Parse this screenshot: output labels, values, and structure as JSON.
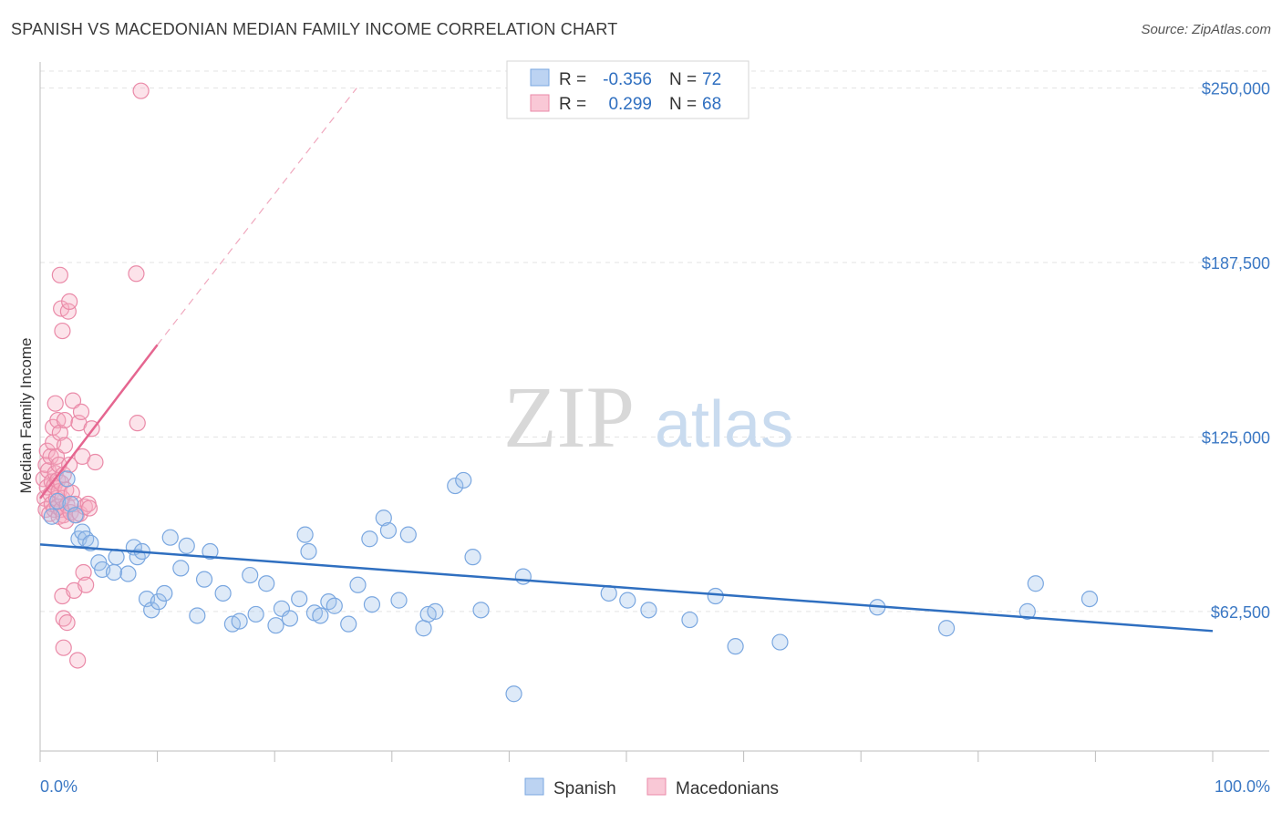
{
  "header": {
    "title": "SPANISH VS MACEDONIAN MEDIAN FAMILY INCOME CORRELATION CHART",
    "source": "Source: ZipAtlas.com"
  },
  "watermark": {
    "zip": "ZIP",
    "atlas": "atlas"
  },
  "legend": {
    "rows": [
      {
        "r_label": "R =",
        "r_value": "-0.356",
        "n_label": "N =",
        "n_value": "72",
        "color": "#a8c6ee"
      },
      {
        "r_label": "R =",
        "r_value": "0.299",
        "n_label": "N =",
        "n_value": "68",
        "color": "#f6b6c8"
      }
    ]
  },
  "bottom_legend": [
    {
      "label": "Spanish",
      "color": "#a8c6ee"
    },
    {
      "label": "Macedonians",
      "color": "#f6b6c8"
    }
  ],
  "colors": {
    "spanish_fill": "rgba(160,194,236,0.35)",
    "spanish_stroke": "#7aa7e0",
    "spanish_line": "#2f6fc0",
    "macedonian_fill": "rgba(246,176,196,0.35)",
    "macedonian_stroke": "#ea8aa8",
    "macedonian_line": "#e56690",
    "axis_text": "#3b78c4",
    "grid": "#e3e3e3"
  },
  "chart_data": {
    "type": "scatter",
    "title": "SPANISH VS MACEDONIAN MEDIAN FAMILY INCOME CORRELATION CHART",
    "xlabel": "",
    "ylabel": "Median Family Income",
    "xlim": [
      0,
      100
    ],
    "ylim": [
      5000,
      258000
    ],
    "x_tick_labels": [
      "0.0%",
      "100.0%"
    ],
    "y_ticks": [
      62500,
      125000,
      187500,
      250000
    ],
    "y_tick_labels": [
      "$62,500",
      "$125,000",
      "$187,500",
      "$250,000"
    ],
    "grid": true,
    "series": [
      {
        "name": "Spanish",
        "r": -0.356,
        "n": 72,
        "trend": {
          "x": [
            0,
            100
          ],
          "y": [
            86500,
            55500
          ],
          "dashed_extension": false
        },
        "points": [
          [
            1,
            96500
          ],
          [
            1.5,
            102000
          ],
          [
            2.3,
            110000
          ],
          [
            2.6,
            101000
          ],
          [
            3,
            97000
          ],
          [
            3.3,
            88500
          ],
          [
            3.6,
            91000
          ],
          [
            3.9,
            88500
          ],
          [
            4.3,
            87000
          ],
          [
            5,
            80000
          ],
          [
            5.3,
            77500
          ],
          [
            6.3,
            76500
          ],
          [
            6.5,
            82000
          ],
          [
            7.5,
            76000
          ],
          [
            8,
            85500
          ],
          [
            8.3,
            82000
          ],
          [
            8.7,
            84000
          ],
          [
            9.1,
            67000
          ],
          [
            9.5,
            63000
          ],
          [
            10.1,
            66000
          ],
          [
            10.6,
            69000
          ],
          [
            11.1,
            89000
          ],
          [
            12,
            78000
          ],
          [
            12.5,
            86000
          ],
          [
            13.4,
            61000
          ],
          [
            14,
            74000
          ],
          [
            14.5,
            84000
          ],
          [
            15.6,
            69000
          ],
          [
            16.4,
            58000
          ],
          [
            17,
            59000
          ],
          [
            17.9,
            75500
          ],
          [
            18.4,
            61500
          ],
          [
            19.3,
            72500
          ],
          [
            20.1,
            57500
          ],
          [
            20.6,
            63500
          ],
          [
            21.3,
            60000
          ],
          [
            22.1,
            67000
          ],
          [
            22.6,
            90000
          ],
          [
            22.9,
            84000
          ],
          [
            23.4,
            62000
          ],
          [
            23.9,
            61000
          ],
          [
            24.6,
            66000
          ],
          [
            25.1,
            64500
          ],
          [
            26.3,
            58000
          ],
          [
            27.1,
            72000
          ],
          [
            28.1,
            88500
          ],
          [
            28.3,
            65000
          ],
          [
            29.3,
            96000
          ],
          [
            29.7,
            91500
          ],
          [
            30.6,
            66500
          ],
          [
            31.4,
            90000
          ],
          [
            32.7,
            56500
          ],
          [
            33.1,
            61500
          ],
          [
            33.7,
            62500
          ],
          [
            35.4,
            107500
          ],
          [
            36.1,
            109500
          ],
          [
            36.9,
            82000
          ],
          [
            37.6,
            63000
          ],
          [
            40.4,
            33000
          ],
          [
            41.2,
            75000
          ],
          [
            48.5,
            69000
          ],
          [
            50.1,
            66500
          ],
          [
            51.9,
            63000
          ],
          [
            55.4,
            59500
          ],
          [
            57.6,
            68000
          ],
          [
            59.3,
            50000
          ],
          [
            63.1,
            51500
          ],
          [
            71.4,
            64000
          ],
          [
            77.3,
            56500
          ],
          [
            84.2,
            62500
          ],
          [
            84.9,
            72500
          ],
          [
            89.5,
            67000
          ]
        ]
      },
      {
        "name": "Macedonians",
        "r": 0.299,
        "n": 68,
        "trend": {
          "x": [
            0,
            10
          ],
          "y": [
            103000,
            158000
          ],
          "dashed_extension": true,
          "dashed_to": [
            27,
            250000
          ]
        },
        "points": [
          [
            0.3,
            110000
          ],
          [
            0.4,
            103000
          ],
          [
            0.5,
            99000
          ],
          [
            0.5,
            115000
          ],
          [
            0.6,
            107000
          ],
          [
            0.6,
            120000
          ],
          [
            0.7,
            113000
          ],
          [
            0.8,
            97500
          ],
          [
            0.9,
            104500
          ],
          [
            0.9,
            118000
          ],
          [
            1,
            101000
          ],
          [
            1,
            109000
          ],
          [
            1.1,
            123000
          ],
          [
            1.1,
            128500
          ],
          [
            1.2,
            99000
          ],
          [
            1.2,
            107500
          ],
          [
            1.3,
            112000
          ],
          [
            1.3,
            137000
          ],
          [
            1.4,
            103000
          ],
          [
            1.4,
            118000
          ],
          [
            1.5,
            100000
          ],
          [
            1.5,
            109500
          ],
          [
            1.5,
            131000
          ],
          [
            1.6,
            96500
          ],
          [
            1.6,
            105500
          ],
          [
            1.6,
            115000
          ],
          [
            1.7,
            126500
          ],
          [
            1.7,
            183000
          ],
          [
            1.8,
            99000
          ],
          [
            1.8,
            108500
          ],
          [
            1.8,
            171000
          ],
          [
            1.9,
            68000
          ],
          [
            1.9,
            103000
          ],
          [
            1.9,
            163000
          ],
          [
            2,
            60000
          ],
          [
            2,
            97000
          ],
          [
            2,
            49500
          ],
          [
            2,
            111500
          ],
          [
            2.1,
            131000
          ],
          [
            2.1,
            122000
          ],
          [
            2.2,
            95000
          ],
          [
            2.2,
            106000
          ],
          [
            2.3,
            58500
          ],
          [
            2.3,
            100500
          ],
          [
            2.4,
            170000
          ],
          [
            2.5,
            173500
          ],
          [
            2.5,
            115000
          ],
          [
            2.6,
            98000
          ],
          [
            2.7,
            105000
          ],
          [
            2.8,
            138000
          ],
          [
            2.9,
            70000
          ],
          [
            3,
            101000
          ],
          [
            3.1,
            97000
          ],
          [
            3.2,
            45000
          ],
          [
            3.3,
            130000
          ],
          [
            3.4,
            97500
          ],
          [
            3.5,
            134000
          ],
          [
            3.6,
            118000
          ],
          [
            3.7,
            76500
          ],
          [
            3.8,
            100000
          ],
          [
            3.9,
            72000
          ],
          [
            4.1,
            101000
          ],
          [
            4.2,
            99500
          ],
          [
            4.4,
            128000
          ],
          [
            4.7,
            116000
          ],
          [
            8.2,
            183500
          ],
          [
            8.3,
            130000
          ],
          [
            8.6,
            249000
          ]
        ]
      }
    ]
  }
}
